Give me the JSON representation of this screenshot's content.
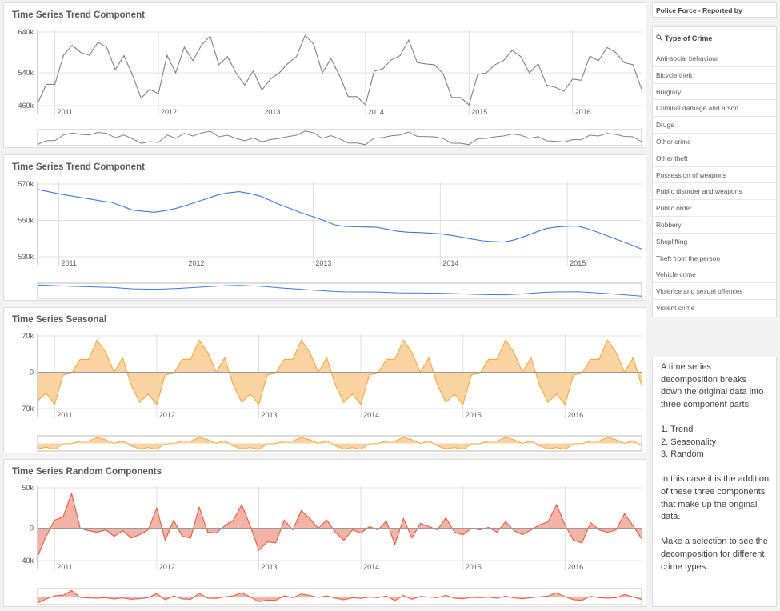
{
  "colors": {
    "trend_raw": "#808080",
    "trend": "#3d78e0",
    "seasonal_line": "#f2a93b",
    "seasonal_fill": "#f9d3a1",
    "random_line": "#e8593e",
    "random_fill": "#f4b3a6",
    "grid": "#e0e0e0",
    "axis": "#9a9a9a"
  },
  "filters": {
    "header": "Police Force - Reported by",
    "crime_type": {
      "title": "Type of Crime",
      "items": [
        "Anti-social behaviour",
        "Bicycle theft",
        "Burglary",
        "Criminal damage and arson",
        "Drugs",
        "Other crime",
        "Other theft",
        "Possession of weapons",
        "Public disorder and weapons",
        "Public order",
        "Robbery",
        "Shoplifting",
        "Theft from the person",
        "Vehicle crime",
        "Violence and sexual offences",
        "Violent crime"
      ]
    }
  },
  "description": {
    "intro": "A time series decomposition breaks down the original data into three component parts:",
    "items": [
      "1. Trend",
      "2. Seasonality",
      "3. Random"
    ],
    "para2": "In this case it is the addition of these three components that make up the original data.",
    "para3": "Make a selection to see the decomposition for different crime types."
  },
  "chart_data": [
    {
      "type": "line",
      "title": "Time Series Trend Component",
      "x_start": "2010-11",
      "x_labels": [
        "2011",
        "2012",
        "2013",
        "2014",
        "2015",
        "2016"
      ],
      "y_ticks": [
        "640k",
        "540k",
        "460k"
      ],
      "ylim": [
        460000,
        640000
      ],
      "y_tick_values": [
        640000,
        540000,
        460000
      ],
      "values": [
        465000,
        512000,
        512000,
        583000,
        608000,
        590000,
        583000,
        615000,
        603000,
        548000,
        582000,
        535000,
        478000,
        500000,
        489000,
        583000,
        540000,
        603000,
        570000,
        608000,
        630000,
        560000,
        580000,
        540000,
        510000,
        545000,
        498000,
        525000,
        540000,
        563000,
        580000,
        632000,
        610000,
        540000,
        575000,
        533000,
        482000,
        482000,
        462000,
        544000,
        550000,
        572000,
        582000,
        620000,
        565000,
        562000,
        560000,
        538000,
        480000,
        480000,
        462000,
        536000,
        540000,
        560000,
        570000,
        595000,
        580000,
        540000,
        562000,
        510000,
        505000,
        495000,
        525000,
        522000,
        581000,
        570000,
        602000,
        590000,
        565000,
        560000,
        500000
      ]
    },
    {
      "type": "line",
      "title": "Time Series Trend Component",
      "x_start": "2010-11",
      "x_labels": [
        "2011",
        "2012",
        "2013",
        "2014",
        "2015",
        "2016"
      ],
      "y_ticks": [
        "570k",
        "550k",
        "530k"
      ],
      "ylim": [
        530000,
        570000
      ],
      "y_tick_values": [
        570000,
        550000,
        530000
      ],
      "values": [
        567000,
        565800,
        564600,
        563600,
        562600,
        561700,
        560700,
        559900,
        557800,
        555600,
        555000,
        554500,
        555300,
        556500,
        558200,
        560100,
        562000,
        564000,
        565100,
        565800,
        564800,
        563300,
        560900,
        558300,
        556200,
        553900,
        552000,
        550000,
        547600,
        546700,
        546500,
        546400,
        546200,
        545100,
        544000,
        543500,
        543300,
        543000,
        542600,
        541800,
        540800,
        539700,
        538800,
        538300,
        538100,
        539300,
        541300,
        543500,
        545500,
        546400,
        546800,
        546900,
        545200,
        543200,
        541000,
        538800,
        536600,
        534300
      ]
    },
    {
      "type": "area",
      "title": "Time Series Seasonal",
      "x_start": "2010-11",
      "x_labels": [
        "2011",
        "2012",
        "2013",
        "2014",
        "2015",
        "2016"
      ],
      "y_ticks": [
        "70k",
        "0",
        "-70k"
      ],
      "ylim": [
        -70000,
        70000
      ],
      "y_tick_values": [
        70000,
        0,
        -70000
      ],
      "values": [
        -55000,
        -40000,
        -62000,
        -5000,
        -2000,
        25000,
        25000,
        62000,
        38000,
        0,
        28000,
        -25000,
        -58000,
        -42000,
        -62000,
        -5000,
        -2000,
        25000,
        25000,
        62000,
        38000,
        0,
        28000,
        -25000,
        -58000,
        -42000,
        -62000,
        -5000,
        -2000,
        25000,
        25000,
        62000,
        38000,
        0,
        28000,
        -25000,
        -58000,
        -42000,
        -62000,
        -5000,
        -2000,
        25000,
        25000,
        62000,
        38000,
        0,
        28000,
        -25000,
        -58000,
        -42000,
        -62000,
        -5000,
        -2000,
        25000,
        25000,
        62000,
        38000,
        0,
        28000,
        -25000,
        -58000,
        -42000,
        -62000,
        -5000,
        -2000,
        25000,
        25000,
        62000,
        38000,
        0,
        28000,
        -25000
      ]
    },
    {
      "type": "area",
      "title": "Time Series Random Components",
      "x_start": "2010-11",
      "x_labels": [
        "2011",
        "2012",
        "2013",
        "2014",
        "2015",
        "2016"
      ],
      "y_ticks": [
        "50k",
        "0",
        "-40k"
      ],
      "ylim": [
        -40000,
        50000
      ],
      "y_tick_values": [
        50000,
        0,
        -40000
      ],
      "values": [
        -35000,
        -10000,
        10000,
        14000,
        43000,
        0,
        -3000,
        -5000,
        -2000,
        -10000,
        -3000,
        -12000,
        -8000,
        -2000,
        25000,
        -15000,
        10000,
        -10000,
        -12000,
        26000,
        -5000,
        -6000,
        3000,
        10000,
        29000,
        3000,
        -27000,
        -17000,
        -18000,
        10000,
        -2000,
        22000,
        12000,
        0,
        10000,
        -5000,
        -15000,
        -2000,
        -6000,
        2000,
        -2000,
        9000,
        -20000,
        12000,
        -12000,
        6000,
        2000,
        -2000,
        13000,
        -5000,
        -8000,
        0,
        -2000,
        1000,
        -5000,
        8000,
        -3000,
        -8000,
        -2000,
        4000,
        8000,
        29000,
        4000,
        -15000,
        -18000,
        7000,
        -2000,
        -5000,
        -2000,
        18000,
        3000,
        -13000
      ]
    }
  ]
}
